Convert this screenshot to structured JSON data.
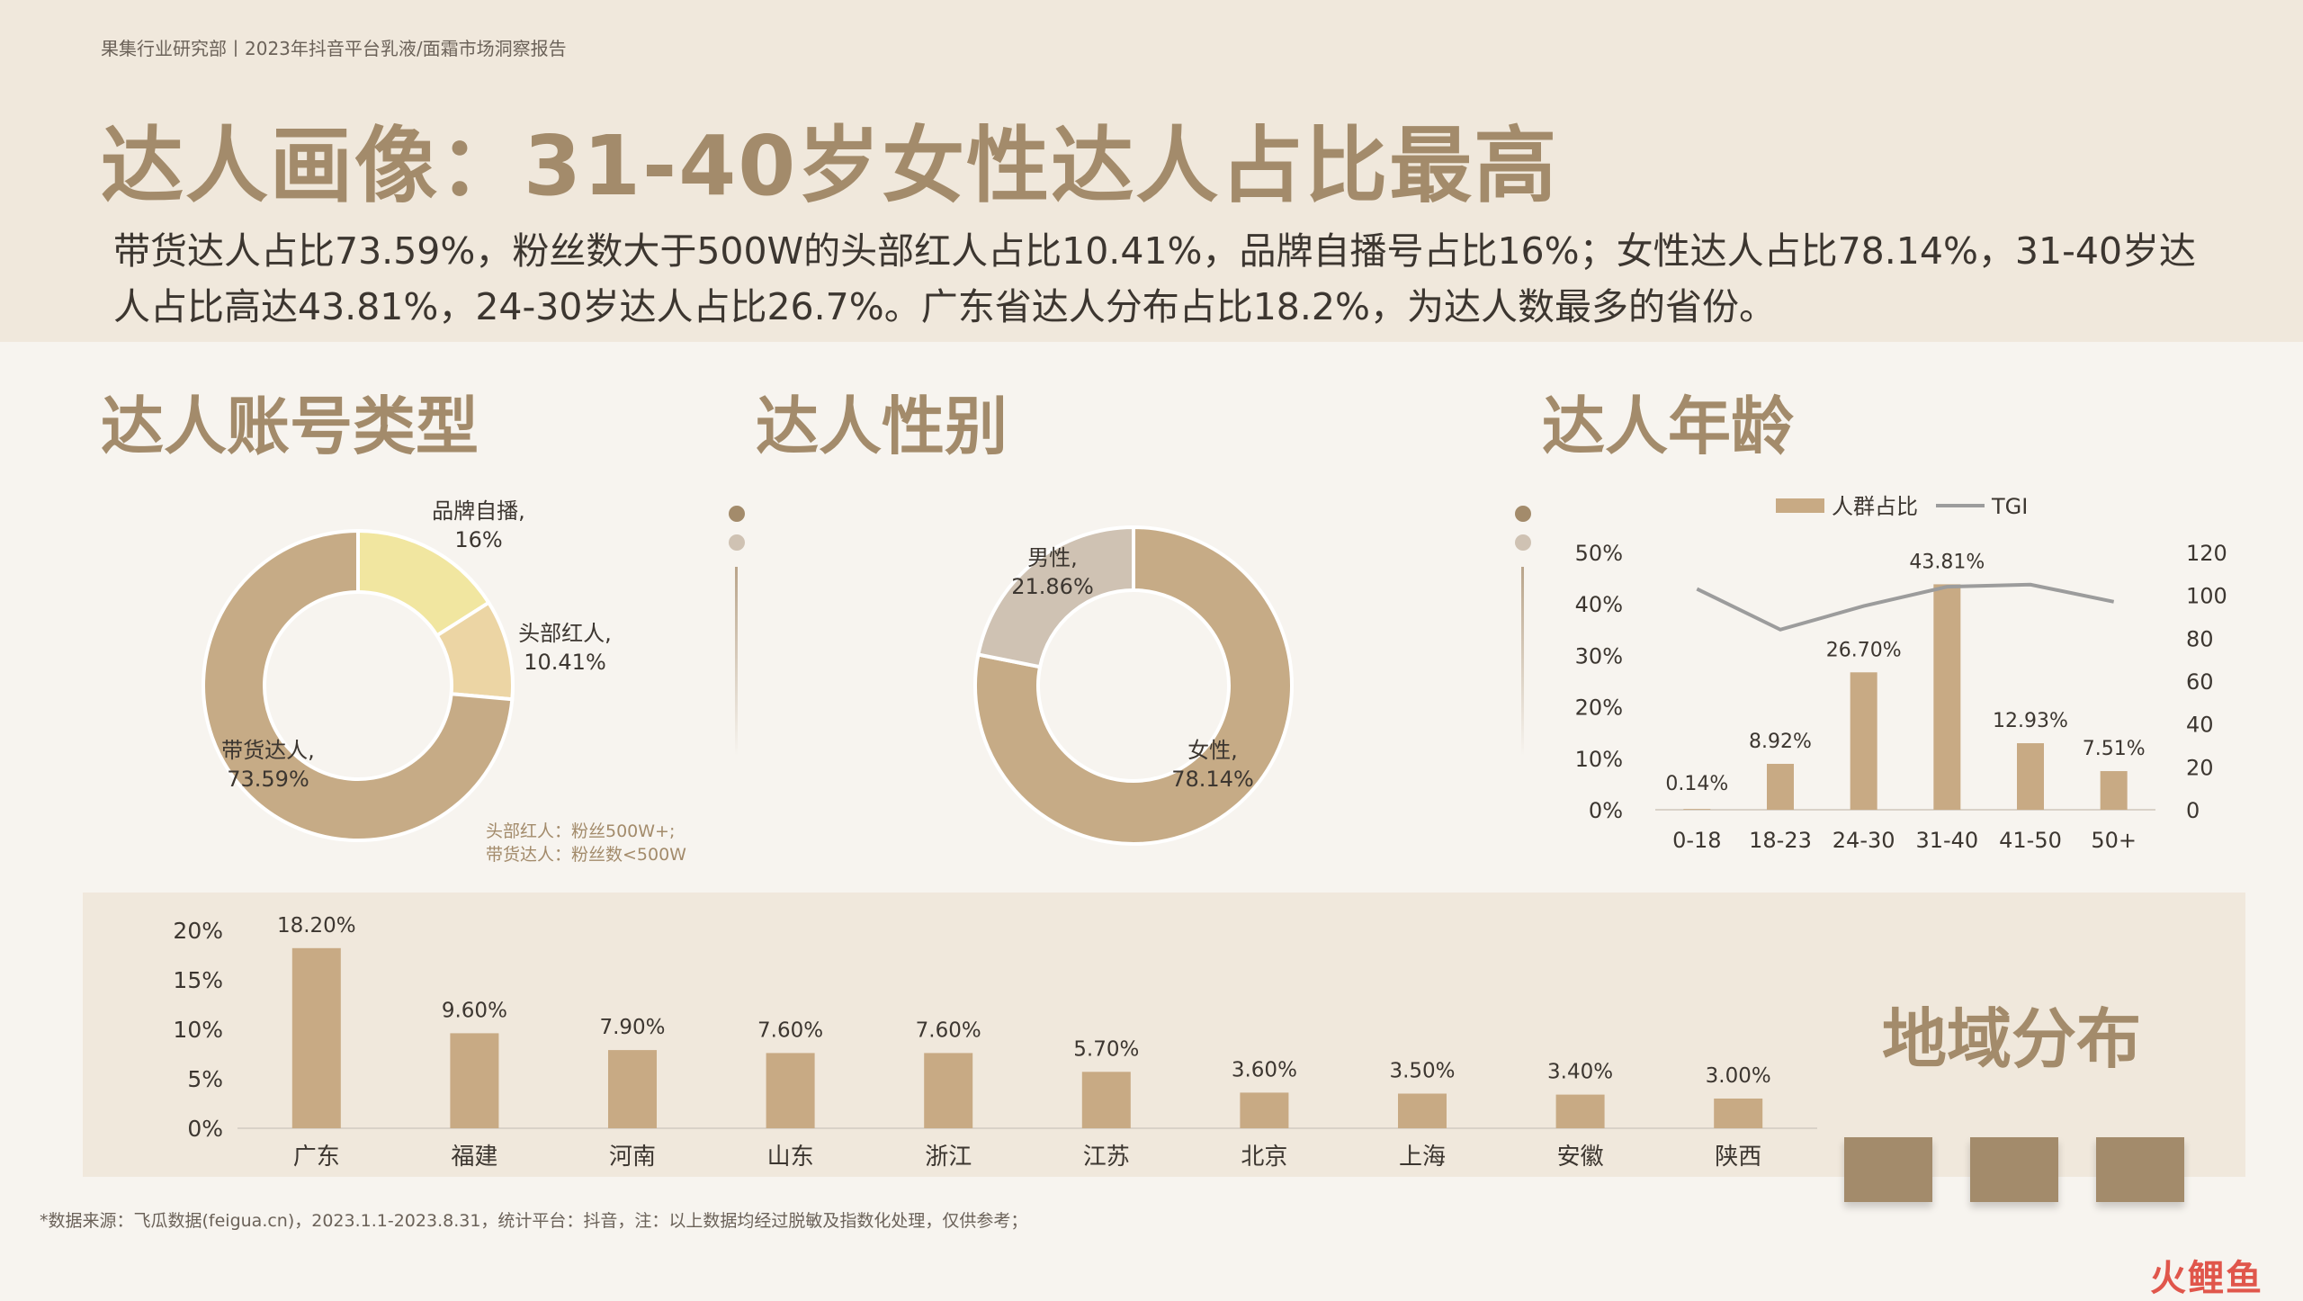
{
  "header": {
    "meta": "果集行业研究部丨2023年抖音平台乳液/面霜市场洞察报告",
    "title": "达人画像：31-40岁女性达人占比最高",
    "summary": "带货达人占比73.59%，粉丝数大于500W的头部红人占比10.41%，品牌自播号占比16%；女性达人占比78.14%，31-40岁达人占比高达43.81%，24-30岁达人占比26.7%。广东省达人分布占比18.2%，为达人数最多的省份。"
  },
  "sections": {
    "account_type": "达人账号类型",
    "gender": "达人性别",
    "age": "达人年龄",
    "region": "地域分布"
  },
  "notes": {
    "account_note_1": "头部红人：粉丝500W+;",
    "account_note_2": "带货达人：粉丝数<500W",
    "source": "*数据来源：飞瓜数据(feigua.cn)，2023.1.1-2023.8.31，统计平台：抖音，注：以上数据均经过脱敏及指数化处理，仅供参考；"
  },
  "watermark": "火鲤鱼",
  "colors": {
    "accent": "#a38b6b",
    "bar": "#c8aa84",
    "slice_main": "#c6ab86",
    "slice_brand": "#f1e6a0",
    "slice_head": "#ecd5a4",
    "slice_male": "#cfc2b3",
    "line": "#9c9c9c"
  },
  "chart_data": [
    {
      "id": "account_type",
      "type": "pie",
      "categories": [
        "带货达人",
        "头部红人",
        "品牌自播"
      ],
      "values": [
        73.59,
        10.41,
        16
      ],
      "labels": [
        "带货达人,|73.59%",
        "头部红人,|10.41%",
        "品牌自播,|16%"
      ]
    },
    {
      "id": "gender",
      "type": "pie",
      "categories": [
        "女性",
        "男性"
      ],
      "values": [
        78.14,
        21.86
      ],
      "labels": [
        "女性,|78.14%",
        "男性,|21.86%"
      ]
    },
    {
      "id": "age",
      "type": "bar",
      "categories": [
        "0-18",
        "18-23",
        "24-30",
        "31-40",
        "41-50",
        "50+"
      ],
      "series": [
        {
          "name": "人群占比",
          "type": "bar",
          "values": [
            0.14,
            8.92,
            26.7,
            43.81,
            12.93,
            7.51
          ],
          "labels": [
            "0.14%",
            "8.92%",
            "26.70%",
            "43.81%",
            "12.93%",
            "7.51%"
          ]
        },
        {
          "name": "TGI",
          "type": "line",
          "axis": "right",
          "values": [
            103,
            84,
            95,
            104,
            105,
            97
          ]
        }
      ],
      "ylim": [
        0,
        50
      ],
      "yticks": [
        "0%",
        "10%",
        "20%",
        "30%",
        "40%",
        "50%"
      ],
      "y2lim": [
        0,
        120
      ],
      "y2ticks": [
        "0",
        "20",
        "40",
        "60",
        "80",
        "100",
        "120"
      ],
      "legend": "top"
    },
    {
      "id": "region",
      "type": "bar",
      "categories": [
        "广东",
        "福建",
        "河南",
        "山东",
        "浙江",
        "江苏",
        "北京",
        "上海",
        "安徽",
        "陕西"
      ],
      "values": [
        18.2,
        9.6,
        7.9,
        7.6,
        7.6,
        5.7,
        3.6,
        3.5,
        3.4,
        3.0
      ],
      "labels": [
        "18.20%",
        "9.60%",
        "7.90%",
        "7.60%",
        "7.60%",
        "5.70%",
        "3.60%",
        "3.50%",
        "3.40%",
        "3.00%"
      ],
      "ylim": [
        0,
        20
      ],
      "yticks": [
        "0%",
        "5%",
        "10%",
        "15%",
        "20%"
      ]
    }
  ]
}
